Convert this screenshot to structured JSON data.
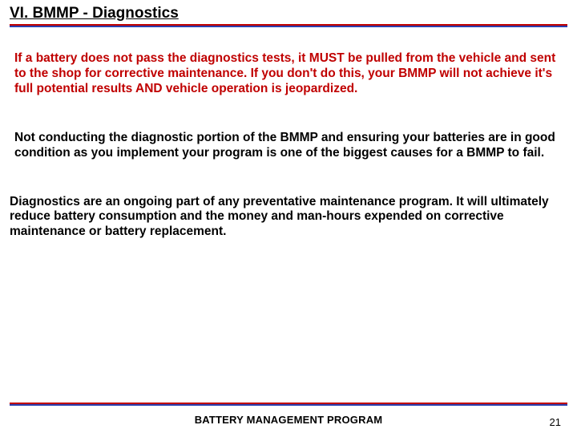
{
  "colors": {
    "rule_red": "#c00000",
    "rule_blue": "#2a3fb0",
    "text_red": "#c00000"
  },
  "title": "VI. BMMP - Diagnostics",
  "paragraphs": {
    "p1": "If a battery does not pass the diagnostics tests, it MUST be pulled from the vehicle and sent to the shop for corrective maintenance.  If you don't do this, your BMMP will not achieve it's full potential results AND vehicle operation is jeopardized.",
    "p2": "Not conducting the diagnostic portion of the BMMP and ensuring your batteries are in good condition as you implement your program is one of the biggest causes for a BMMP to fail.",
    "p3": "Diagnostics are an ongoing part of any preventative maintenance program.  It will ultimately reduce battery consumption and the money and man-hours expended on corrective maintenance or battery replacement."
  },
  "footer": {
    "program_title": "BATTERY MANAGEMENT PROGRAM",
    "page_number": "21"
  }
}
